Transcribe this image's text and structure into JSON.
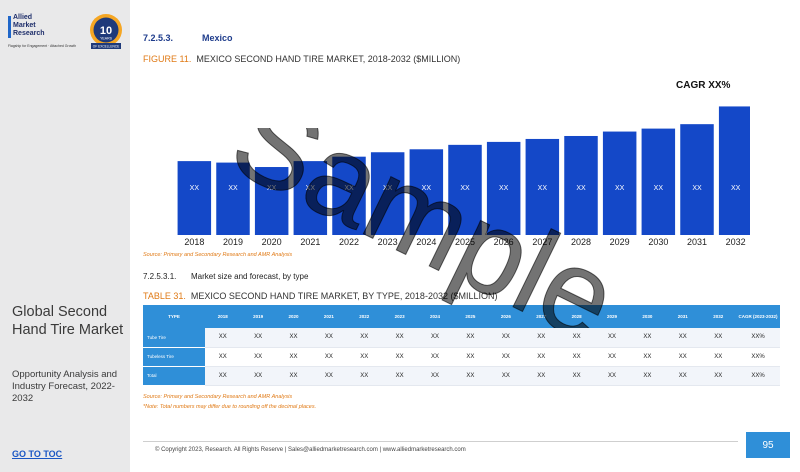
{
  "brand": {
    "logo_lines": [
      "Allied",
      "Market",
      "Research"
    ],
    "logo_tagline": "Flagship for Engagement · Attached Growth",
    "badge_number": "10",
    "badge_text": "YEARS",
    "badge_ribbon": "OF EXCELLENCE"
  },
  "sidebar": {
    "title": "Global Second Hand Tire Market",
    "subtitle": "Opportunity Analysis and Industry Forecast, 2022-2032",
    "goto_label": "GO TO TOC"
  },
  "section": {
    "number": "7.2.5.3.",
    "title": "Mexico"
  },
  "figure": {
    "label": "FIGURE 11.",
    "caption": "MEXICO SECOND HAND TIRE MARKET, 2018-2032 ($MILLION)"
  },
  "cagr_label": "CAGR XX%",
  "chart_data": {
    "type": "bar",
    "title": "MEXICO SECOND HAND TIRE MARKET, 2018-2032 ($MILLION)",
    "categories": [
      "2018",
      "2019",
      "2020",
      "2021",
      "2022",
      "2023",
      "2024",
      "2025",
      "2026",
      "2027",
      "2028",
      "2029",
      "2030",
      "2031",
      "2032"
    ],
    "values": [
      50,
      49,
      46,
      50,
      53,
      56,
      58,
      61,
      63,
      65,
      67,
      70,
      72,
      75,
      87
    ],
    "data_labels": [
      "XX",
      "XX",
      "XX",
      "XX",
      "XX",
      "XX",
      "XX",
      "XX",
      "XX",
      "XX",
      "XX",
      "XX",
      "XX",
      "XX",
      "XX"
    ],
    "ylim": [
      0,
      90
    ],
    "grid": false,
    "bar_color": "#1448c8"
  },
  "source_1": "Source: Primary and Secondary Research and AMR Analysis",
  "subsection": {
    "number": "7.2.5.3.1.",
    "title": "Market size and forecast, by type"
  },
  "table_caption": {
    "label": "TABLE 31.",
    "text": "MEXICO SECOND HAND TIRE MARKET, BY TYPE, 2018-2032 ($MILLION)"
  },
  "table": {
    "headers": [
      "TYPE",
      "2018",
      "2019",
      "2020",
      "2021",
      "2022",
      "2023",
      "2024",
      "2025",
      "2026",
      "2027",
      "2028",
      "2029",
      "2030",
      "2031",
      "2032",
      "CAGR (2023-2032)"
    ],
    "rows": [
      {
        "label": "Tube Tire",
        "cells": [
          "XX",
          "XX",
          "XX",
          "XX",
          "XX",
          "XX",
          "XX",
          "XX",
          "XX",
          "XX",
          "XX",
          "XX",
          "XX",
          "XX",
          "XX",
          "XX%"
        ]
      },
      {
        "label": "Tubeless Tire",
        "cells": [
          "XX",
          "XX",
          "XX",
          "XX",
          "XX",
          "XX",
          "XX",
          "XX",
          "XX",
          "XX",
          "XX",
          "XX",
          "XX",
          "XX",
          "XX",
          "XX%"
        ]
      },
      {
        "label": "Total",
        "cells": [
          "XX",
          "XX",
          "XX",
          "XX",
          "XX",
          "XX",
          "XX",
          "XX",
          "XX",
          "XX",
          "XX",
          "XX",
          "XX",
          "XX",
          "XX",
          "XX%"
        ]
      }
    ]
  },
  "source_2": "Source: Primary and Secondary Research and AMR Analysis",
  "note": "*Note: Total numbers may differ due to rounding off the decimal places.",
  "footer": "© Copyright 2023, Research. All Rights Reserve | Sales@alliedmarketresearch.com | www.alliedmarketresearch.com",
  "page_number": "95",
  "watermark": "Sample",
  "colors": {
    "accent": "#e07a16",
    "heading": "#1e3c8c",
    "table_header": "#2f8fd8",
    "sidebar_bg": "#e9e9ea",
    "link": "#1a56c4"
  }
}
